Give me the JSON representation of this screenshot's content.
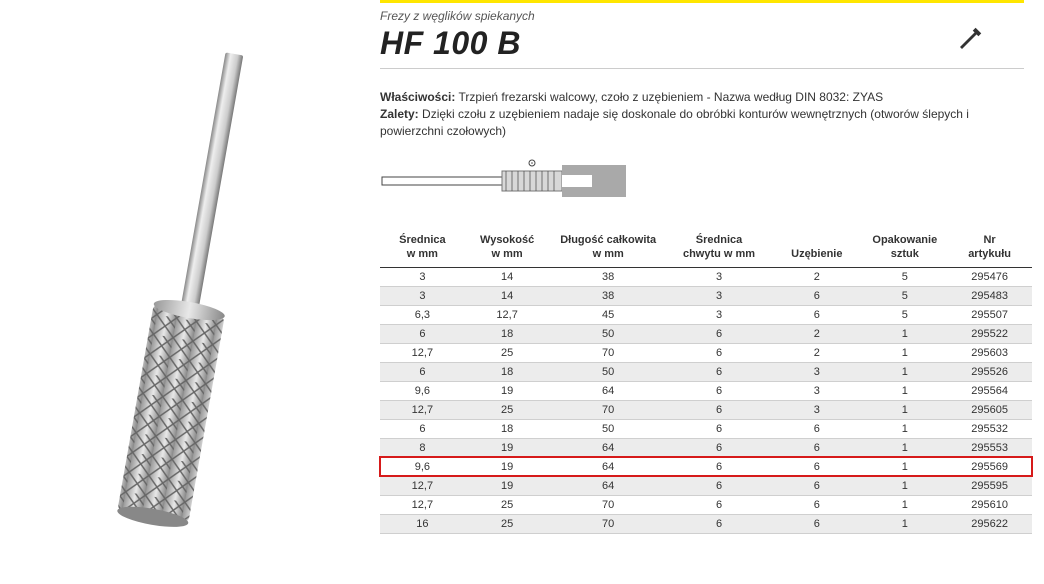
{
  "header": {
    "subtitle": "Frezy z węglików spiekanych",
    "title": "HF 100 B"
  },
  "description": {
    "prop_label": "Właściwości:",
    "prop_text": "Trzpień frezarski walcowy, czoło z uzębieniem - Nazwa według DIN 8032: ZYAS",
    "adv_label": "Zalety:",
    "adv_text": "Dzięki czołu z uzębieniem nadaje się doskonale do obróbki konturów wewnętrznych (otworów ślepych i powierzchni czołowych)"
  },
  "table": {
    "columns": [
      "Średnica\nw mm",
      "Wysokość\nw mm",
      "Długość całkowita\nw mm",
      "Średnica\nchwytu w mm",
      "Uzębienie",
      "Opakowanie\nsztuk",
      "Nr\nartykułu"
    ],
    "rows": [
      {
        "d": [
          "3",
          "14",
          "38",
          "3",
          "2",
          "5",
          "295476"
        ],
        "shade": false,
        "hl": false
      },
      {
        "d": [
          "3",
          "14",
          "38",
          "3",
          "6",
          "5",
          "295483"
        ],
        "shade": true,
        "hl": false
      },
      {
        "d": [
          "6,3",
          "12,7",
          "45",
          "3",
          "6",
          "5",
          "295507"
        ],
        "shade": false,
        "hl": false
      },
      {
        "d": [
          "6",
          "18",
          "50",
          "6",
          "2",
          "1",
          "295522"
        ],
        "shade": true,
        "hl": false
      },
      {
        "d": [
          "12,7",
          "25",
          "70",
          "6",
          "2",
          "1",
          "295603"
        ],
        "shade": false,
        "hl": false
      },
      {
        "d": [
          "6",
          "18",
          "50",
          "6",
          "3",
          "1",
          "295526"
        ],
        "shade": true,
        "hl": false
      },
      {
        "d": [
          "9,6",
          "19",
          "64",
          "6",
          "3",
          "1",
          "295564"
        ],
        "shade": false,
        "hl": false
      },
      {
        "d": [
          "12,7",
          "25",
          "70",
          "6",
          "3",
          "1",
          "295605"
        ],
        "shade": true,
        "hl": false
      },
      {
        "d": [
          "6",
          "18",
          "50",
          "6",
          "6",
          "1",
          "295532"
        ],
        "shade": false,
        "hl": false
      },
      {
        "d": [
          "8",
          "19",
          "64",
          "6",
          "6",
          "1",
          "295553"
        ],
        "shade": true,
        "hl": false
      },
      {
        "d": [
          "9,6",
          "19",
          "64",
          "6",
          "6",
          "1",
          "295569"
        ],
        "shade": false,
        "hl": true
      },
      {
        "d": [
          "12,7",
          "19",
          "64",
          "6",
          "6",
          "1",
          "295595"
        ],
        "shade": true,
        "hl": false
      },
      {
        "d": [
          "12,7",
          "25",
          "70",
          "6",
          "6",
          "1",
          "295610"
        ],
        "shade": false,
        "hl": false
      },
      {
        "d": [
          "16",
          "25",
          "70",
          "6",
          "6",
          "1",
          "295622"
        ],
        "shade": true,
        "hl": false
      }
    ],
    "col_widths": [
      "13%",
      "13%",
      "18%",
      "16%",
      "14%",
      "13%",
      "13%"
    ],
    "shade_color": "#ececec",
    "highlight_color": "#d61a1a",
    "border_color": "#cfcfcf",
    "header_border": "#333333",
    "fontsize": 11
  },
  "accent_color": "#ffe600",
  "background_color": "#ffffff"
}
